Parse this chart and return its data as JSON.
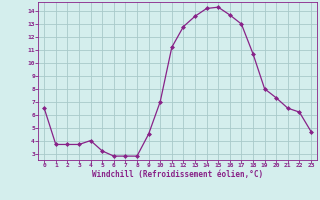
{
  "hours": [
    0,
    1,
    2,
    3,
    4,
    5,
    6,
    7,
    8,
    9,
    10,
    11,
    12,
    13,
    14,
    15,
    16,
    17,
    18,
    19,
    20,
    21,
    22,
    23
  ],
  "windchill": [
    6.5,
    3.7,
    3.7,
    3.7,
    4.0,
    3.2,
    2.8,
    2.8,
    2.8,
    4.5,
    7.0,
    11.2,
    12.8,
    13.6,
    14.2,
    14.3,
    13.7,
    13.0,
    10.7,
    8.0,
    7.3,
    6.5,
    6.2,
    4.7
  ],
  "line_color": "#882288",
  "marker": "D",
  "marker_size": 2.0,
  "bg_color": "#d4eeed",
  "grid_color": "#a8caca",
  "xlabel": "Windchill (Refroidissement éolien,°C)",
  "xlabel_color": "#882288",
  "tick_color": "#882288",
  "ylim": [
    2.5,
    14.7
  ],
  "yticks": [
    3,
    4,
    5,
    6,
    7,
    8,
    9,
    10,
    11,
    12,
    13,
    14
  ],
  "xlim": [
    -0.5,
    23.5
  ],
  "xticks": [
    0,
    1,
    2,
    3,
    4,
    5,
    6,
    7,
    8,
    9,
    10,
    11,
    12,
    13,
    14,
    15,
    16,
    17,
    18,
    19,
    20,
    21,
    22,
    23
  ],
  "axis_bg": "#d4eeed"
}
